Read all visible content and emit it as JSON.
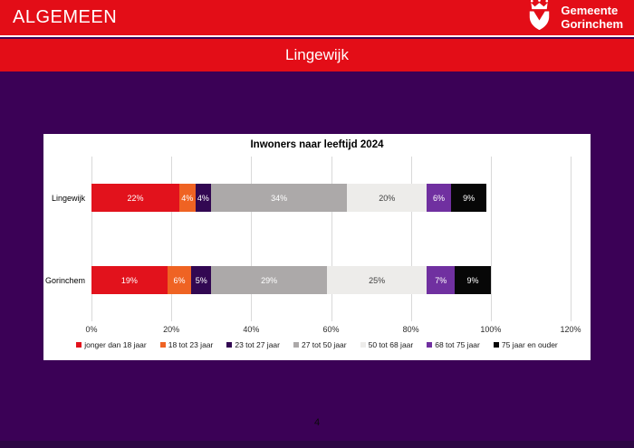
{
  "header": {
    "title": "ALGEMEEN",
    "logo": {
      "line1": "Gemeente",
      "line2": "Gorinchem"
    }
  },
  "subtitle": "Lingewijk",
  "page_number": "4",
  "colors": {
    "header_red": "#E30D17",
    "background_purple": "#3B0156",
    "footer_strip_purple": "#2D0744",
    "panel_white": "#FFFFFF",
    "gridline_gray": "#D9D9D9"
  },
  "chart_data": {
    "type": "bar",
    "orientation": "horizontal",
    "stacked": true,
    "title": "Inwoners naar leeftijd 2024",
    "categories": [
      "Lingewijk",
      "Gorinchem"
    ],
    "series": [
      {
        "name": "jonger dan 18 jaar",
        "color": "#E2121C",
        "label_color": "#FFFFFF",
        "values": [
          22,
          19
        ]
      },
      {
        "name": "18 tot 23 jaar",
        "color": "#EF6323",
        "label_color": "#FFFFFF",
        "values": [
          4,
          6
        ]
      },
      {
        "name": "23 tot 27 jaar",
        "color": "#320852",
        "label_color": "#FFFFFF",
        "values": [
          4,
          5
        ]
      },
      {
        "name": "27 tot 50 jaar",
        "color": "#ACA9A9",
        "label_color": "#FFFFFF",
        "values": [
          34,
          29
        ]
      },
      {
        "name": "50 tot 68 jaar",
        "color": "#EDECEA",
        "label_color": "#3F3F3F",
        "values": [
          20,
          25
        ]
      },
      {
        "name": "68 tot 75 jaar",
        "color": "#7030A0",
        "label_color": "#FFFFFF",
        "values": [
          6,
          7
        ]
      },
      {
        "name": "75 jaar en ouder",
        "color": "#070707",
        "label_color": "#FFFFFF",
        "values": [
          9,
          9
        ]
      }
    ],
    "value_suffix": "%",
    "x_ticks": [
      "0%",
      "20%",
      "40%",
      "60%",
      "80%",
      "100%",
      "120%"
    ],
    "xlim": [
      0,
      120
    ],
    "grid": true,
    "legend_position": "bottom"
  }
}
